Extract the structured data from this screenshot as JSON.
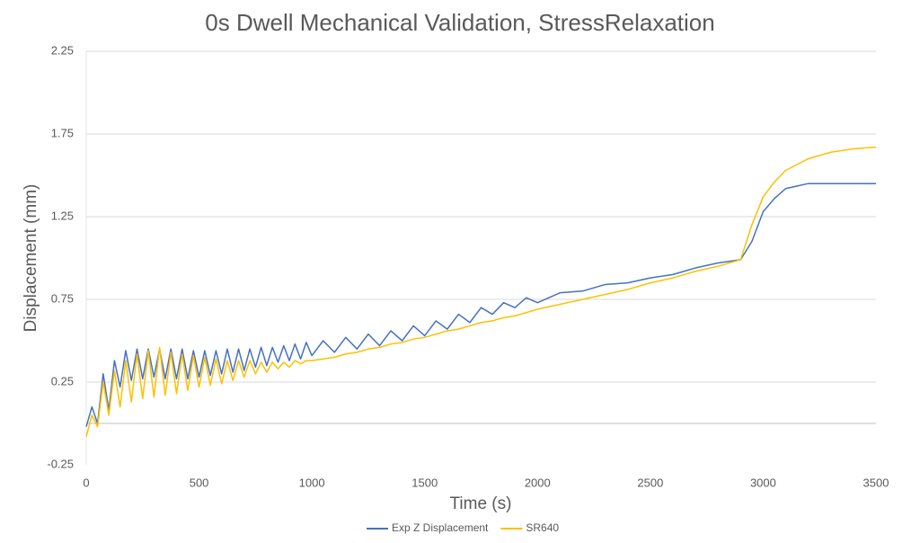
{
  "chart_data": {
    "type": "line",
    "title": "0s Dwell Mechanical Validation, StressRelaxation",
    "x_label": "Time (s)",
    "y_label": "Displacement (mm)",
    "x": [
      0,
      25,
      50,
      75,
      100,
      125,
      150,
      175,
      200,
      225,
      250,
      275,
      300,
      325,
      350,
      375,
      400,
      425,
      450,
      475,
      500,
      525,
      550,
      575,
      600,
      625,
      650,
      675,
      700,
      725,
      750,
      775,
      800,
      825,
      850,
      875,
      900,
      925,
      950,
      975,
      1000,
      1050,
      1100,
      1150,
      1200,
      1250,
      1300,
      1350,
      1400,
      1450,
      1500,
      1550,
      1600,
      1650,
      1700,
      1750,
      1800,
      1850,
      1900,
      1950,
      2000,
      2100,
      2200,
      2300,
      2400,
      2500,
      2600,
      2700,
      2800,
      2900,
      2950,
      3000,
      3050,
      3100,
      3200,
      3300,
      3400,
      3500
    ],
    "series": [
      {
        "name": "Exp Z Displacement",
        "color": "#4472c4",
        "values": [
          -0.02,
          0.1,
          0.0,
          0.3,
          0.08,
          0.38,
          0.22,
          0.44,
          0.26,
          0.45,
          0.27,
          0.45,
          0.28,
          0.45,
          0.27,
          0.45,
          0.27,
          0.45,
          0.27,
          0.44,
          0.28,
          0.44,
          0.29,
          0.44,
          0.3,
          0.45,
          0.31,
          0.45,
          0.32,
          0.45,
          0.34,
          0.46,
          0.35,
          0.46,
          0.37,
          0.47,
          0.38,
          0.48,
          0.39,
          0.49,
          0.41,
          0.5,
          0.43,
          0.52,
          0.45,
          0.54,
          0.47,
          0.56,
          0.5,
          0.59,
          0.53,
          0.62,
          0.57,
          0.66,
          0.61,
          0.7,
          0.66,
          0.73,
          0.7,
          0.76,
          0.73,
          0.79,
          0.8,
          0.84,
          0.85,
          0.88,
          0.9,
          0.94,
          0.97,
          0.99,
          1.1,
          1.28,
          1.36,
          1.42,
          1.45,
          1.45,
          1.45,
          1.45
        ]
      },
      {
        "name": "SR640",
        "color": "#ffc000",
        "values": [
          -0.08,
          0.05,
          -0.02,
          0.25,
          0.05,
          0.32,
          0.1,
          0.38,
          0.13,
          0.42,
          0.15,
          0.44,
          0.16,
          0.46,
          0.17,
          0.43,
          0.18,
          0.42,
          0.2,
          0.41,
          0.22,
          0.4,
          0.23,
          0.39,
          0.24,
          0.38,
          0.26,
          0.38,
          0.28,
          0.38,
          0.3,
          0.37,
          0.31,
          0.37,
          0.33,
          0.37,
          0.34,
          0.38,
          0.36,
          0.38,
          0.38,
          0.39,
          0.4,
          0.42,
          0.43,
          0.45,
          0.46,
          0.48,
          0.49,
          0.51,
          0.52,
          0.54,
          0.56,
          0.57,
          0.59,
          0.61,
          0.62,
          0.64,
          0.65,
          0.67,
          0.69,
          0.72,
          0.75,
          0.78,
          0.81,
          0.85,
          0.88,
          0.92,
          0.95,
          0.99,
          1.2,
          1.37,
          1.46,
          1.53,
          1.6,
          1.64,
          1.66,
          1.67
        ]
      }
    ],
    "xlim": [
      0,
      3500
    ],
    "xticks": [
      0,
      500,
      1000,
      1500,
      2000,
      2500,
      3000,
      3500
    ],
    "ylim": [
      -0.25,
      2.25
    ],
    "yticks": [
      -0.25,
      0.25,
      0.75,
      1.25,
      1.75,
      2.25
    ],
    "grid": true,
    "legend": "bottom"
  }
}
